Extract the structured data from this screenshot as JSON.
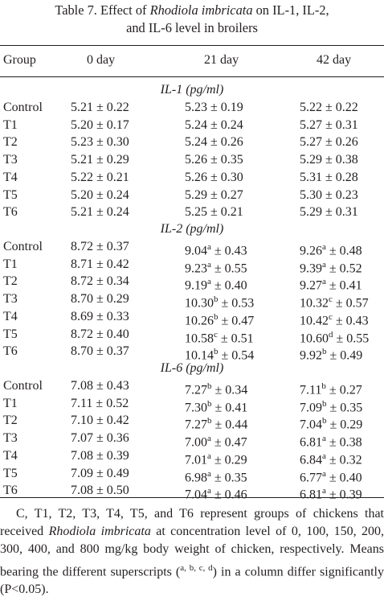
{
  "table": {
    "caption_line1_prefix": "Table 7. Effect of ",
    "caption_line1_italic": "Rhodiola imbricata",
    "caption_line1_suffix": " on IL-1, IL-2,",
    "caption_line2": "and IL-6 level in broilers",
    "headers": [
      "Group",
      "0 day",
      "21 day",
      "42 day"
    ],
    "sections": [
      {
        "title": "IL-1 (pg/ml)",
        "rows": [
          [
            {
              "v": "Control"
            },
            {
              "v": "5.21 ± 0.22"
            },
            {
              "v": "5.23 ± 0.19"
            },
            {
              "v": "5.22 ± 0.22"
            }
          ],
          [
            {
              "v": "T1"
            },
            {
              "v": "5.20 ± 0.17"
            },
            {
              "v": "5.24 ± 0.24"
            },
            {
              "v": "5.27 ± 0.31"
            }
          ],
          [
            {
              "v": "T2"
            },
            {
              "v": "5.23 ± 0.30"
            },
            {
              "v": "5.24 ± 0.26"
            },
            {
              "v": "5.27 ± 0.26"
            }
          ],
          [
            {
              "v": "T3"
            },
            {
              "v": "5.21 ± 0.29"
            },
            {
              "v": "5.26 ± 0.35"
            },
            {
              "v": "5.29 ± 0.38"
            }
          ],
          [
            {
              "v": "T4"
            },
            {
              "v": "5.22 ± 0.21"
            },
            {
              "v": "5.26 ± 0.30"
            },
            {
              "v": "5.31 ± 0.28"
            }
          ],
          [
            {
              "v": "T5"
            },
            {
              "v": "5.20 ± 0.24"
            },
            {
              "v": "5.29 ± 0.27"
            },
            {
              "v": "5.30 ± 0.23"
            }
          ],
          [
            {
              "v": "T6"
            },
            {
              "v": "5.21 ± 0.24"
            },
            {
              "v": "5.25 ± 0.21"
            },
            {
              "v": "5.29 ± 0.31"
            }
          ]
        ]
      },
      {
        "title": "IL-2 (pg/ml)",
        "rows": [
          [
            {
              "v": "Control"
            },
            {
              "v": "8.72 ± 0.37"
            },
            {
              "v": "9.04",
              "s": "a",
              "r": " ± 0.43"
            },
            {
              "v": "9.26",
              "s": "a",
              "r": " ± 0.48"
            }
          ],
          [
            {
              "v": "T1"
            },
            {
              "v": "8.71 ± 0.42"
            },
            {
              "v": "9.23",
              "s": "a",
              "r": " ± 0.55"
            },
            {
              "v": "9.39",
              "s": "a",
              "r": " ± 0.52"
            }
          ],
          [
            {
              "v": "T2"
            },
            {
              "v": "8.72 ± 0.34"
            },
            {
              "v": "9.19",
              "s": "a",
              "r": " ± 0.40"
            },
            {
              "v": "9.27",
              "s": "a",
              "r": " ± 0.41"
            }
          ],
          [
            {
              "v": "T3"
            },
            {
              "v": "8.70 ± 0.29"
            },
            {
              "v": "10.30",
              "s": "b",
              "r": " ± 0.53"
            },
            {
              "v": "10.32",
              "s": "c",
              "r": " ± 0.57"
            }
          ],
          [
            {
              "v": "T4"
            },
            {
              "v": "8.69 ± 0.33"
            },
            {
              "v": "10.26",
              "s": "b",
              "r": " ± 0.47"
            },
            {
              "v": "10.42",
              "s": "c",
              "r": " ± 0.43"
            }
          ],
          [
            {
              "v": "T5"
            },
            {
              "v": "8.72 ± 0.40"
            },
            {
              "v": "10.58",
              "s": "c",
              "r": " ± 0.51"
            },
            {
              "v": "10.60",
              "s": "d",
              "r": " ± 0.55"
            }
          ],
          [
            {
              "v": "T6"
            },
            {
              "v": "8.70 ± 0.37"
            },
            {
              "v": "10.14",
              "s": "b",
              "r": " ± 0.54"
            },
            {
              "v": "9.92",
              "s": "b",
              "r": " ± 0.49"
            }
          ]
        ]
      },
      {
        "title": "IL-6 (pg/ml)",
        "rows": [
          [
            {
              "v": "Control"
            },
            {
              "v": "7.08 ± 0.43"
            },
            {
              "v": "7.27",
              "s": "b",
              "r": " ± 0.34"
            },
            {
              "v": "7.11",
              "s": "b",
              "r": " ± 0.27"
            }
          ],
          [
            {
              "v": "T1"
            },
            {
              "v": "7.11 ± 0.52"
            },
            {
              "v": "7.30",
              "s": "b",
              "r": " ± 0.41"
            },
            {
              "v": "7.09",
              "s": "b",
              "r": " ± 0.35"
            }
          ],
          [
            {
              "v": "T2"
            },
            {
              "v": "7.10 ± 0.42"
            },
            {
              "v": "7.27",
              "s": "b",
              "r": " ± 0.44"
            },
            {
              "v": "7.04",
              "s": "b",
              "r": " ± 0.29"
            }
          ],
          [
            {
              "v": "T3"
            },
            {
              "v": "7.07 ± 0.36"
            },
            {
              "v": "7.00",
              "s": "a",
              "r": " ± 0.47"
            },
            {
              "v": "6.81",
              "s": "a",
              "r": " ± 0.38"
            }
          ],
          [
            {
              "v": "T4"
            },
            {
              "v": "7.08 ± 0.39"
            },
            {
              "v": "7.01",
              "s": "a",
              "r": " ± 0.29"
            },
            {
              "v": "6.84",
              "s": "a",
              "r": " ± 0.32"
            }
          ],
          [
            {
              "v": "T5"
            },
            {
              "v": "7.09 ± 0.49"
            },
            {
              "v": "6.98",
              "s": "a",
              "r": " ± 0.35"
            },
            {
              "v": "6.77",
              "s": "a",
              "r": " ± 0.40"
            }
          ],
          [
            {
              "v": "T6"
            },
            {
              "v": "7.08 ± 0.50"
            },
            {
              "v": "7.04",
              "s": "a",
              "r": " ± 0.46"
            },
            {
              "v": "6.81",
              "s": "a",
              "r": " ± 0.39"
            }
          ]
        ]
      }
    ],
    "footnote": {
      "part1": "C, T1, T2, T3, T4, T5, and T6 represent groups of chickens that received ",
      "italic": "Rhodiola imbricata",
      "part2": " at concentration level of 0, 100, 150, 200, 300, 400, and 800 mg/kg body weight of chicken, respectively. Means bearing the different superscripts (",
      "sup": "a, b, c, d",
      "part3": ") in a column differ significantly (P<0.05)."
    }
  }
}
